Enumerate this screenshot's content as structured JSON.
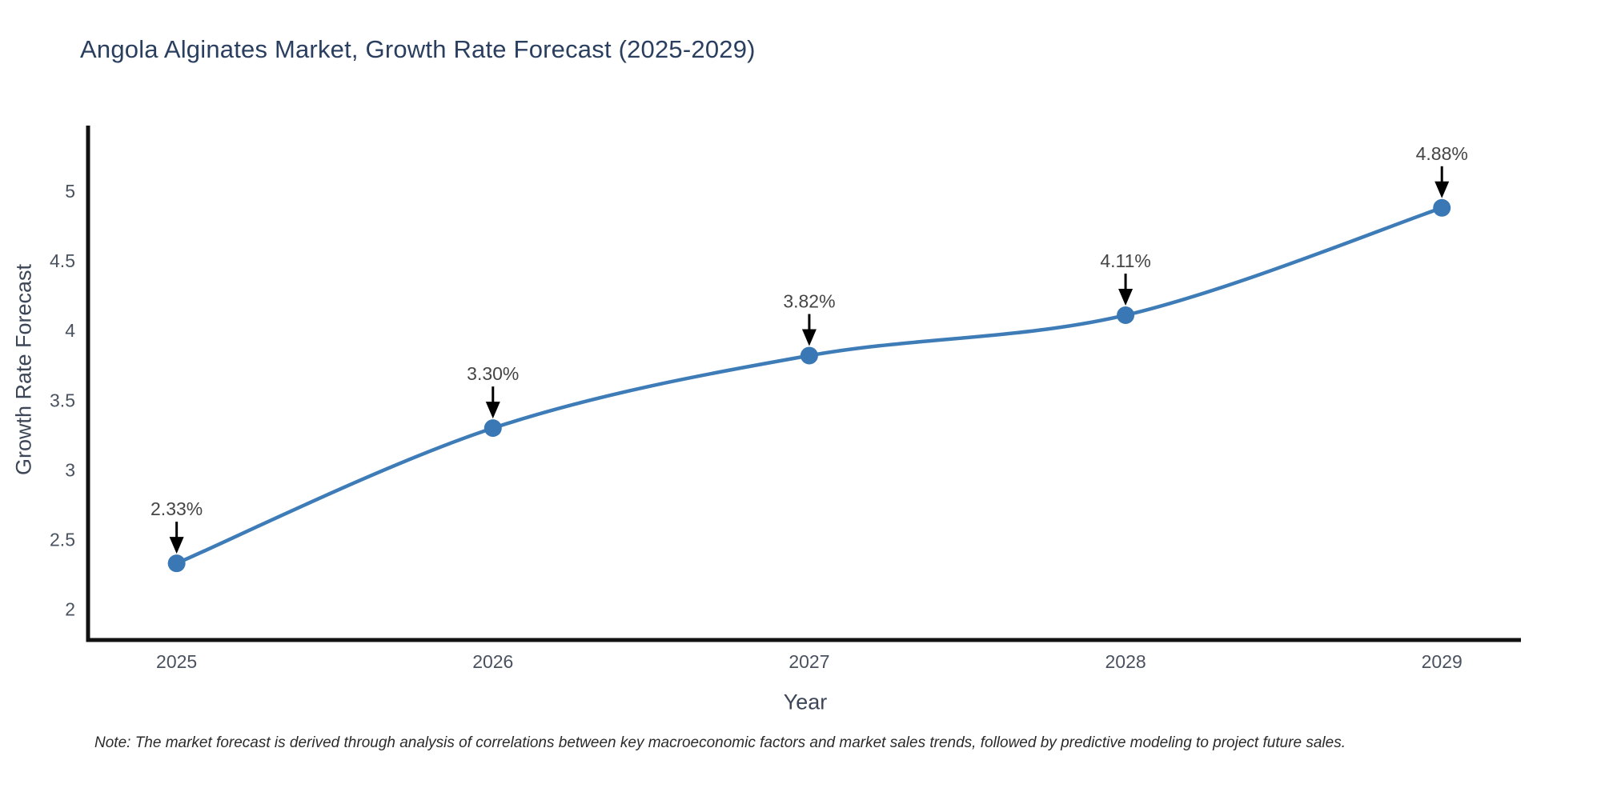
{
  "page": {
    "note": "Note: The market forecast is derived through analysis of correlations between key macroeconomic factors and market sales trends, followed by predictive modeling to project future sales."
  },
  "chart_data": {
    "type": "line",
    "title": "Angola Alginates Market, Growth Rate Forecast (2025-2029)",
    "xlabel": "Year",
    "ylabel": "Growth Rate Forecast",
    "x": [
      2025,
      2026,
      2027,
      2028,
      2029
    ],
    "series": [
      {
        "name": "Growth Rate Forecast",
        "values": [
          2.33,
          3.3,
          3.82,
          4.11,
          4.88
        ]
      }
    ],
    "point_labels": [
      "2.33%",
      "3.30%",
      "3.82%",
      "4.11%",
      "4.88%"
    ],
    "x_tick_labels": [
      "2025",
      "2026",
      "2027",
      "2028",
      "2029"
    ],
    "y_ticks": [
      2,
      2.5,
      3,
      3.5,
      4,
      4.5,
      5
    ],
    "y_tick_labels": [
      "2",
      "2.5",
      "3",
      "3.5",
      "4",
      "4.5",
      "5"
    ],
    "xlim": [
      2024.72,
      2029.25
    ],
    "ylim": [
      1.78,
      5.47
    ],
    "line_shape": "spline",
    "grid": false,
    "legend": false,
    "annotation_style": "down-arrow-above-point",
    "colors": {
      "line": "#3e7cb8",
      "marker": "#3a78b5",
      "axis": "#111111",
      "tick_label": "#4a5260",
      "annotation_text": "#454545",
      "annotation_arrow": "#000000",
      "title": "#2a3f5f"
    }
  }
}
